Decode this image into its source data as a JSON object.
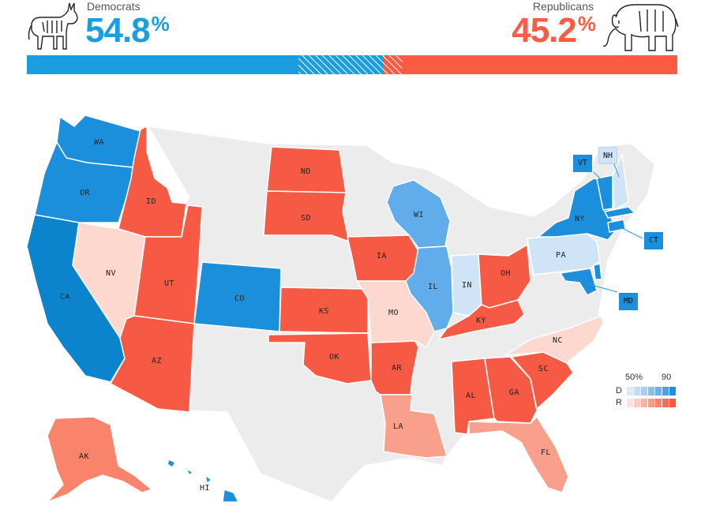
{
  "header": {
    "dem": {
      "label": "Democrats",
      "value": "54.8",
      "unit": "%"
    },
    "rep": {
      "label": "Republicans",
      "value": "45.2",
      "unit": "%"
    }
  },
  "bar": {
    "dem_share": 0.548,
    "rep_share": 0.452,
    "dem_color": "#1b9ee0",
    "rep_color": "#fb5a43"
  },
  "states": {
    "WA": "WA",
    "OR": "OR",
    "CA": "CA",
    "ID": "ID",
    "NV": "NV",
    "UT": "UT",
    "AZ": "AZ",
    "CO": "CO",
    "ND": "ND",
    "SD": "SD",
    "KS": "KS",
    "OK": "OK",
    "AR": "AR",
    "LA": "LA",
    "IA": "IA",
    "MO": "MO",
    "WI": "WI",
    "IL": "IL",
    "IN": "IN",
    "OH": "OH",
    "KY": "KY",
    "AL": "AL",
    "GA": "GA",
    "SC": "SC",
    "NC": "NC",
    "FL": "FL",
    "PA": "PA",
    "NY": "NY",
    "AK": "AK",
    "HI": "HI"
  },
  "callouts": {
    "VT": "VT",
    "NH": "NH",
    "CT": "CT",
    "MD": "MD"
  },
  "legend": {
    "min_label": "50%",
    "max_label": "90",
    "dem_row": "D",
    "rep_row": "R",
    "dem_scale": [
      "#dbe9f7",
      "#c3dcf4",
      "#a9cdf0",
      "#8cbeec",
      "#6cb0ea",
      "#47a2e7",
      "#1e8fdd"
    ],
    "rep_scale": [
      "#fde1da",
      "#fccbbf",
      "#fbb3a3",
      "#fa9b86",
      "#f9836b",
      "#f86d53",
      "#f65a42"
    ]
  },
  "colors": {
    "dem_strong": "#1b8fdb",
    "dem_mid": "#3399e6",
    "dem_light": "#61acea",
    "dem_pale": "#cfe4f7",
    "rep_strong": "#f65a44",
    "rep_light": "#f9a08c",
    "rep_pale": "#fdd8cf",
    "no_data": "#ececec"
  }
}
